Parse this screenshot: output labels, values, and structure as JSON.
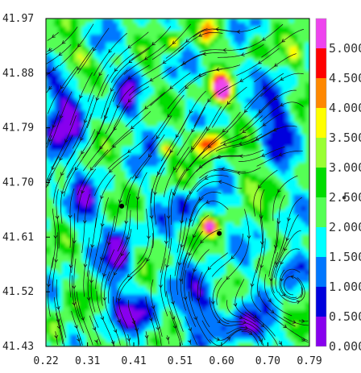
{
  "chart_data": {
    "type": "heatmap",
    "title": "",
    "xlabel": "",
    "ylabel": "",
    "xlim": [
      0.22,
      0.79
    ],
    "ylim": [
      41.43,
      41.97
    ],
    "x_ticks": [
      "0.22",
      "0.31",
      "0.41",
      "0.51",
      "0.60",
      "0.70",
      "0.79"
    ],
    "y_ticks": [
      "41.97",
      "41.88",
      "41.79",
      "41.70",
      "41.61",
      "41.52",
      "41.43"
    ],
    "colorbar": {
      "range": [
        0.0,
        5.5
      ],
      "ticks": [
        "0.000",
        "0.500",
        "1.000",
        "1.500",
        "2.000",
        "2.500",
        "3.000",
        "3.500",
        "4.000",
        "4.500",
        "5.000"
      ],
      "bands": [
        "#8800ee",
        "#0000dd",
        "#0077ff",
        "#00ffff",
        "#55ff55",
        "#00dd00",
        "#99ff33",
        "#ffff00",
        "#ff8800",
        "#ff0000",
        "#ee44ee"
      ],
      "extra_marker": "•"
    },
    "markers": [
      {
        "x": 0.384,
        "y": 41.661
      },
      {
        "x": 0.595,
        "y": 41.616
      }
    ],
    "streamlines": "wind-vector stream lines overlay with arrowheads",
    "grid": false,
    "legend": "colorbar-right"
  }
}
